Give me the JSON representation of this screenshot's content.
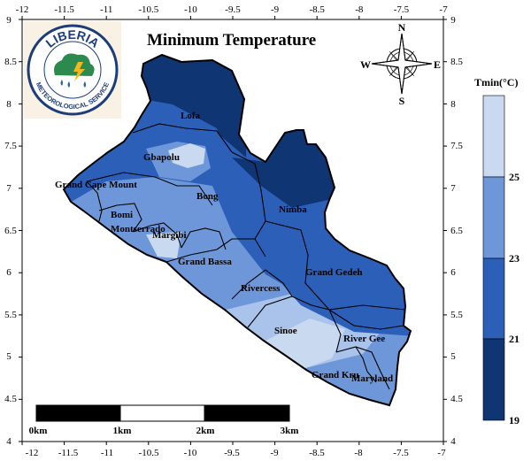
{
  "map": {
    "title": "Minimum Temperature",
    "x_ticks": [
      "-12",
      "-11.5",
      "-11",
      "-10.5",
      "-10",
      "-9.5",
      "-9",
      "-8.5",
      "-8",
      "-7.5",
      "-7"
    ],
    "y_ticks": [
      "9",
      "8.5",
      "8",
      "7.5",
      "7",
      "6.5",
      "6",
      "5.5",
      "5",
      "4.5",
      "4"
    ],
    "counties": [
      "Lofa",
      "Gbapolu",
      "Grand Cape Mount",
      "Bong",
      "Nimba",
      "Bomi",
      "Montserrado",
      "Margibi",
      "Grand Bassa",
      "Rivercess",
      "Grand Gedeh",
      "Sinoe",
      "River Gee",
      "Grand Kru",
      "Maryland"
    ]
  },
  "logo": {
    "top_text": "LIBERIA",
    "bottom_text": "METEOROLOGICAL SERVICE"
  },
  "compass": {
    "n": "N",
    "s": "S",
    "e": "E",
    "w": "W"
  },
  "legend": {
    "title": "Tmin(°C)",
    "ticks": [
      "25",
      "23",
      "21",
      "19"
    ],
    "colors": [
      "#c8d9f0",
      "#6d97d8",
      "#2b5fb8",
      "#0f3572"
    ]
  },
  "scale_bar": {
    "labels": [
      "0km",
      "1km",
      "2km",
      "3km"
    ]
  }
}
